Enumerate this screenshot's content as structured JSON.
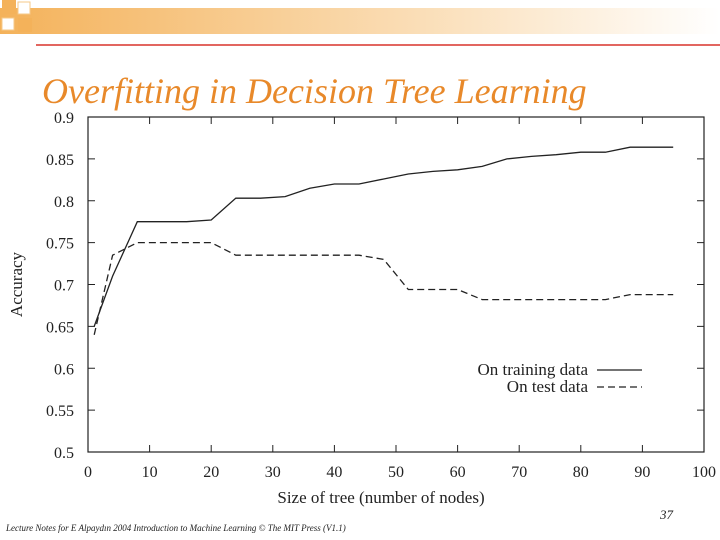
{
  "slide": {
    "title": "Overfitting in Decision Tree Learning",
    "page_number": "37",
    "footer": "Lecture Notes for E Alpaydın 2004 Introduction to Machine Learning © The MIT Press (V1.1)",
    "colors": {
      "title": "#e8892a",
      "accent_line": "#d9342b",
      "decor": "#f4b25a"
    }
  },
  "chart_data": {
    "type": "line",
    "xlabel": "Size of tree (number of nodes)",
    "ylabel": "Accuracy",
    "xlim": [
      0,
      100
    ],
    "ylim": [
      0.5,
      0.9
    ],
    "xticks": [
      0,
      10,
      20,
      30,
      40,
      50,
      60,
      70,
      80,
      90,
      100
    ],
    "xtick_labels": [
      "0",
      "10",
      "20",
      "30",
      "40",
      "50",
      "60",
      "70",
      "80",
      "90",
      "100"
    ],
    "yticks": [
      0.5,
      0.55,
      0.6,
      0.65,
      0.7,
      0.75,
      0.8,
      0.85,
      0.9
    ],
    "ytick_labels": [
      "0.5",
      "0.55",
      "0.6",
      "0.65",
      "0.7",
      "0.75",
      "0.8",
      "0.85",
      "0.9"
    ],
    "grid": false,
    "legend_position": "bottom-right",
    "series": [
      {
        "name": "On training data",
        "style": "solid",
        "x": [
          1,
          4,
          8,
          12,
          16,
          20,
          24,
          28,
          32,
          36,
          40,
          44,
          48,
          52,
          56,
          60,
          64,
          68,
          72,
          76,
          80,
          84,
          88,
          92,
          95
        ],
        "y": [
          0.65,
          0.71,
          0.775,
          0.775,
          0.775,
          0.777,
          0.803,
          0.803,
          0.805,
          0.815,
          0.82,
          0.82,
          0.826,
          0.832,
          0.835,
          0.837,
          0.841,
          0.85,
          0.853,
          0.855,
          0.858,
          0.858,
          0.864,
          0.864,
          0.864
        ]
      },
      {
        "name": "On test data",
        "style": "dashed",
        "x": [
          1,
          4,
          8,
          12,
          16,
          20,
          24,
          28,
          32,
          36,
          40,
          44,
          48,
          52,
          56,
          60,
          64,
          68,
          72,
          76,
          80,
          84,
          88,
          92,
          95
        ],
        "y": [
          0.64,
          0.735,
          0.75,
          0.75,
          0.75,
          0.75,
          0.735,
          0.735,
          0.735,
          0.735,
          0.735,
          0.735,
          0.73,
          0.694,
          0.694,
          0.694,
          0.682,
          0.682,
          0.682,
          0.682,
          0.682,
          0.682,
          0.688,
          0.688,
          0.688
        ]
      }
    ]
  }
}
